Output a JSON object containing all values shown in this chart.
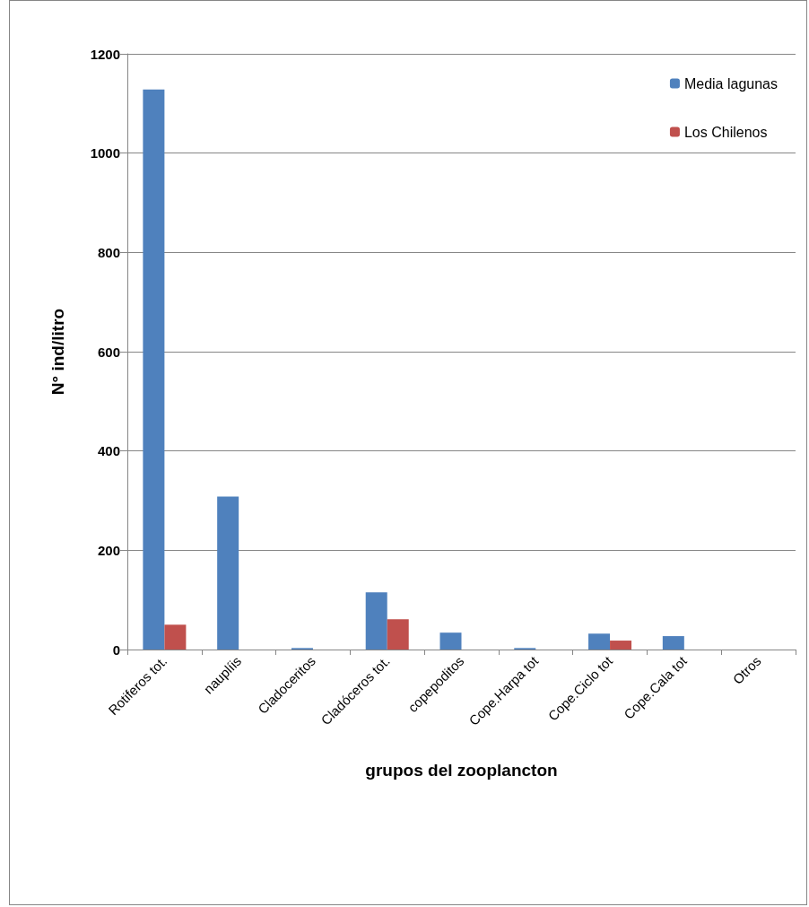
{
  "chart_data": {
    "type": "bar",
    "xlabel": "grupos del zooplancton",
    "ylabel": "N° ind/litro",
    "categories": [
      "Rotiferos tot.",
      "nauplíis",
      "Cladoceritos",
      "Cladóceros tot.",
      "copepoditos",
      "Cope.Harpa tot",
      "Cope.Ciclo tot",
      "Cope.Cala tot",
      "Otros"
    ],
    "series": [
      {
        "name": "Media lagunas",
        "color": "#4f81bd",
        "values": [
          1128,
          308,
          3,
          115,
          34,
          3,
          32,
          27,
          0
        ]
      },
      {
        "name": "Los Chilenos",
        "color": "#c0504d",
        "values": [
          50,
          0,
          0,
          61,
          0,
          0,
          18,
          0,
          0
        ]
      }
    ],
    "ylim": [
      0,
      1200
    ],
    "yticks": [
      0,
      200,
      400,
      600,
      800,
      1000,
      1200
    ],
    "grid": "y",
    "legend": "top right"
  }
}
